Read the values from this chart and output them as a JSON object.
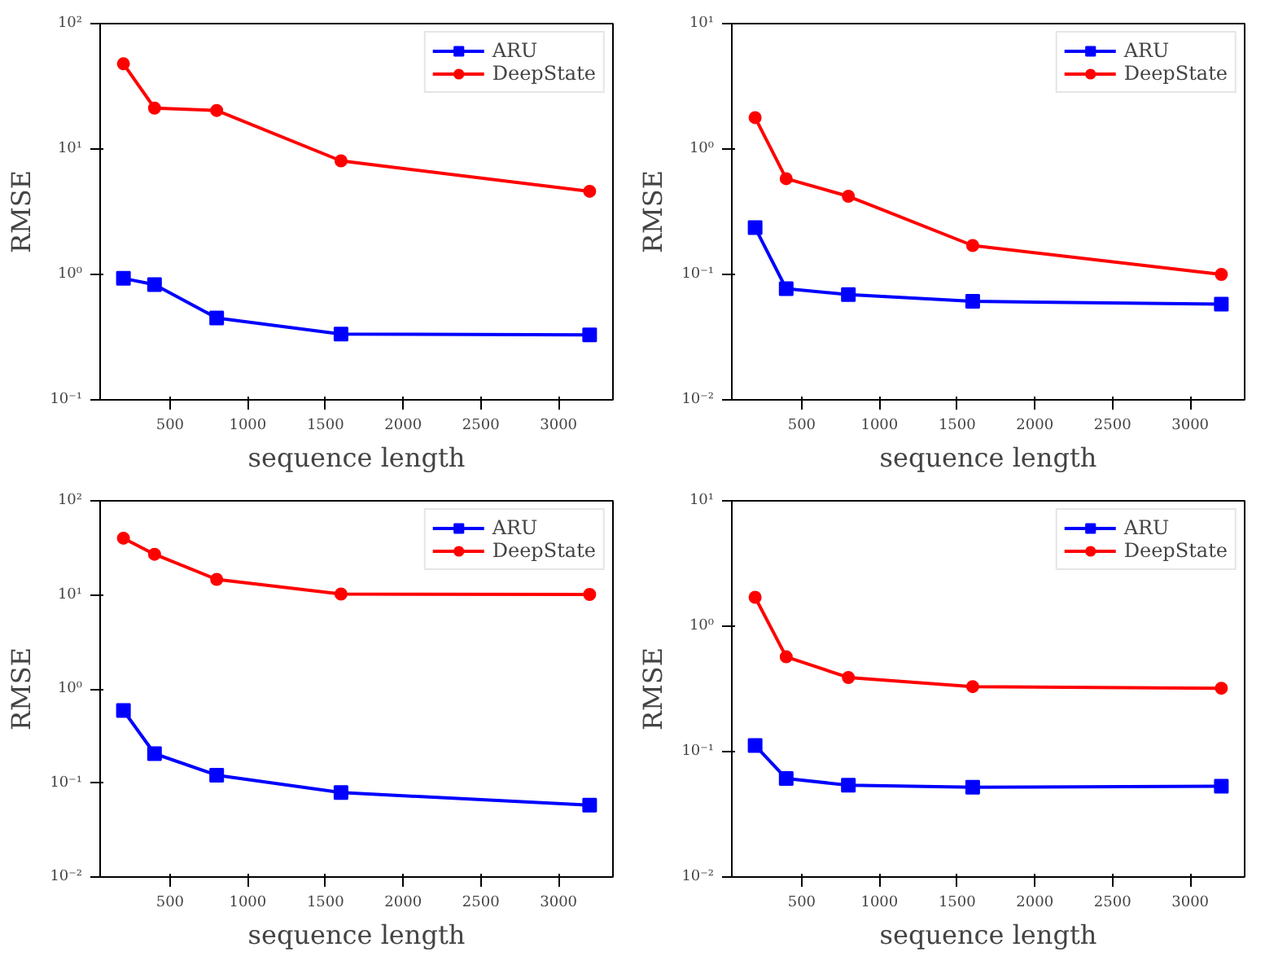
{
  "chart_data": [
    {
      "type": "line",
      "xlabel": "sequence length",
      "ylabel": "RMSE",
      "x": [
        200,
        400,
        800,
        1600,
        3200
      ],
      "log": "y",
      "grid": false,
      "legend": "top right",
      "xlim": [
        50,
        3350
      ],
      "xticks": [
        500,
        1000,
        1500,
        2000,
        2500,
        3000
      ],
      "ylim": [
        0.1,
        100
      ],
      "yticks": [
        {
          "value": 0.1,
          "label": "10⁻¹"
        },
        {
          "value": 1,
          "label": "10⁰"
        },
        {
          "value": 10,
          "label": "10¹"
        },
        {
          "value": 100,
          "label": "10²"
        }
      ],
      "series": [
        {
          "name": "ARU",
          "color": "#0000ff",
          "marker": "square",
          "values": [
            0.93,
            0.83,
            0.45,
            0.334,
            0.33
          ]
        },
        {
          "name": "DeepState",
          "color": "#ff0000",
          "marker": "circle",
          "values": [
            47.8,
            21.2,
            20.3,
            8.05,
            4.6
          ]
        }
      ]
    },
    {
      "type": "line",
      "xlabel": "sequence length",
      "ylabel": "RMSE",
      "x": [
        200,
        400,
        800,
        1600,
        3200
      ],
      "log": "y",
      "grid": false,
      "legend": "top right",
      "xlim": [
        50,
        3350
      ],
      "xticks": [
        500,
        1000,
        1500,
        2000,
        2500,
        3000
      ],
      "ylim": [
        0.01,
        10
      ],
      "yticks": [
        {
          "value": 0.01,
          "label": "10⁻²"
        },
        {
          "value": 0.1,
          "label": "10⁻¹"
        },
        {
          "value": 1,
          "label": "10⁰"
        },
        {
          "value": 10,
          "label": "10¹"
        }
      ],
      "series": [
        {
          "name": "ARU",
          "color": "#0000ff",
          "marker": "square",
          "values": [
            0.236,
            0.077,
            0.069,
            0.061,
            0.058
          ]
        },
        {
          "name": "DeepState",
          "color": "#ff0000",
          "marker": "circle",
          "values": [
            1.78,
            0.58,
            0.42,
            0.17,
            0.1
          ]
        }
      ]
    },
    {
      "type": "line",
      "xlabel": "sequence length",
      "ylabel": "RMSE",
      "x": [
        200,
        400,
        800,
        1600,
        3200
      ],
      "log": "y",
      "grid": false,
      "legend": "top right",
      "xlim": [
        50,
        3350
      ],
      "xticks": [
        500,
        1000,
        1500,
        2000,
        2500,
        3000
      ],
      "ylim": [
        0.01,
        100
      ],
      "yticks": [
        {
          "value": 0.01,
          "label": "10⁻²"
        },
        {
          "value": 0.1,
          "label": "10⁻¹"
        },
        {
          "value": 1,
          "label": "10⁰"
        },
        {
          "value": 10,
          "label": "10¹"
        },
        {
          "value": 100,
          "label": "10²"
        }
      ],
      "series": [
        {
          "name": "ARU",
          "color": "#0000ff",
          "marker": "square",
          "values": [
            0.59,
            0.205,
            0.121,
            0.079,
            0.058
          ]
        },
        {
          "name": "DeepState",
          "color": "#ff0000",
          "marker": "circle",
          "values": [
            40,
            27,
            14.6,
            10.2,
            10.1
          ]
        }
      ]
    },
    {
      "type": "line",
      "xlabel": "sequence length",
      "ylabel": "RMSE",
      "x": [
        200,
        400,
        800,
        1600,
        3200
      ],
      "log": "y",
      "grid": false,
      "legend": "top right",
      "xlim": [
        50,
        3350
      ],
      "xticks": [
        500,
        1000,
        1500,
        2000,
        2500,
        3000
      ],
      "ylim": [
        0.01,
        10
      ],
      "yticks": [
        {
          "value": 0.01,
          "label": "10⁻²"
        },
        {
          "value": 0.1,
          "label": "10⁻¹"
        },
        {
          "value": 1,
          "label": "10⁰"
        },
        {
          "value": 10,
          "label": "10¹"
        }
      ],
      "series": [
        {
          "name": "ARU",
          "color": "#0000ff",
          "marker": "square",
          "values": [
            0.112,
            0.061,
            0.054,
            0.052,
            0.053
          ]
        },
        {
          "name": "DeepState",
          "color": "#ff0000",
          "marker": "circle",
          "values": [
            1.7,
            0.57,
            0.39,
            0.33,
            0.32
          ]
        }
      ]
    }
  ]
}
